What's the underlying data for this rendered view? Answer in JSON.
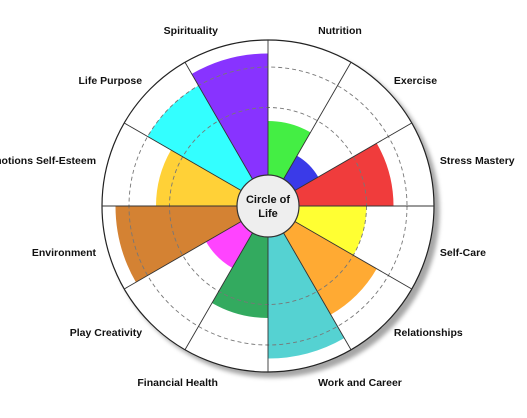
{
  "chart_data": {
    "type": "polar-area",
    "center_title": [
      "Circle of",
      "Life"
    ],
    "scale_max": 10,
    "segments": [
      {
        "label": "Nutrition",
        "value": 4,
        "color": "#44ee44"
      },
      {
        "label": "Exercise",
        "value": 2,
        "color": "#3a3ae8"
      },
      {
        "label": "Stress Mastery",
        "value": 7,
        "color": "#f03c3c"
      },
      {
        "label": "Self-Care",
        "value": 5,
        "color": "#ffff33"
      },
      {
        "label": "Relationships",
        "value": 7,
        "color": "#ffaa33"
      },
      {
        "label": "Work and Career",
        "value": 9,
        "color": "#55d2d2"
      },
      {
        "label": "Financial Health",
        "value": 6,
        "color": "#33aa5f"
      },
      {
        "label": "Play Creativity",
        "value": 3,
        "color": "#ff44ff"
      },
      {
        "label": "Environment",
        "value": 9,
        "color": "#d48233"
      },
      {
        "label": "Emotions Self-Esteem",
        "value": 6,
        "color": "#ffd137"
      },
      {
        "label": "Life Purpose",
        "value": 8,
        "color": "#33ffff"
      },
      {
        "label": "Spirituality",
        "value": 9,
        "color": "#8833ff"
      }
    ],
    "dashed_rings": [
      5,
      8
    ]
  }
}
